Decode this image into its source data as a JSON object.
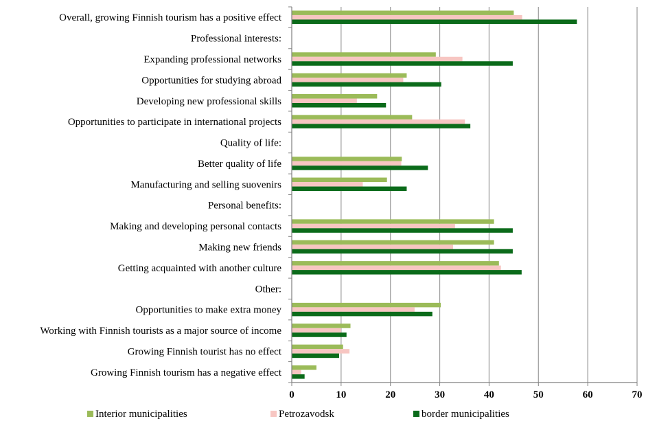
{
  "chart_data": {
    "type": "bar",
    "orientation": "horizontal",
    "categories": [
      "Overall, growing Finnish tourism has a positive effect",
      "Professional interests:",
      "Expanding professional networks",
      "Opportunities for studying abroad",
      "Developing new professional skills",
      "Opportunities to participate in international projects",
      "Quality of life:",
      "Better quality of life",
      "Manufacturing and selling suovenirs",
      "Personal benefits:",
      "Making and developing personal contacts",
      "Making new friends",
      "Getting acquainted with another culture",
      "Other:",
      "Opportunities to make extra money",
      "Working with Finnish tourists as a major source of income",
      "Growing Finnish tourist has no effect",
      "Growing Finnish tourism has a negative effect"
    ],
    "series": [
      {
        "name": "Interior municipalities",
        "color": "#9bbb59",
        "values": [
          45,
          null,
          29.2,
          23.3,
          17.3,
          24.4,
          null,
          22.3,
          19.3,
          null,
          41,
          41,
          42,
          null,
          30.2,
          11.9,
          10.4,
          5
        ]
      },
      {
        "name": "Petrozavodsk",
        "color": "#f7c6c2",
        "values": [
          46.7,
          null,
          34.6,
          22.6,
          13.2,
          35.1,
          null,
          22.2,
          14.4,
          null,
          33.1,
          32.7,
          42.4,
          null,
          24.9,
          10,
          11.7,
          1.9
        ]
      },
      {
        "name": "border municipalities",
        "color": "#0b6b1a",
        "values": [
          57.8,
          null,
          44.8,
          30.3,
          19.1,
          36.2,
          null,
          27.6,
          23.3,
          null,
          44.8,
          44.8,
          46.6,
          null,
          28.5,
          11.1,
          9.6,
          2.6
        ]
      }
    ],
    "xlim": [
      0,
      70
    ],
    "xticks": [
      "0",
      "10",
      "20",
      "30",
      "40",
      "50",
      "60",
      "70"
    ],
    "grid": "vertical",
    "legend_position": "bottom"
  }
}
